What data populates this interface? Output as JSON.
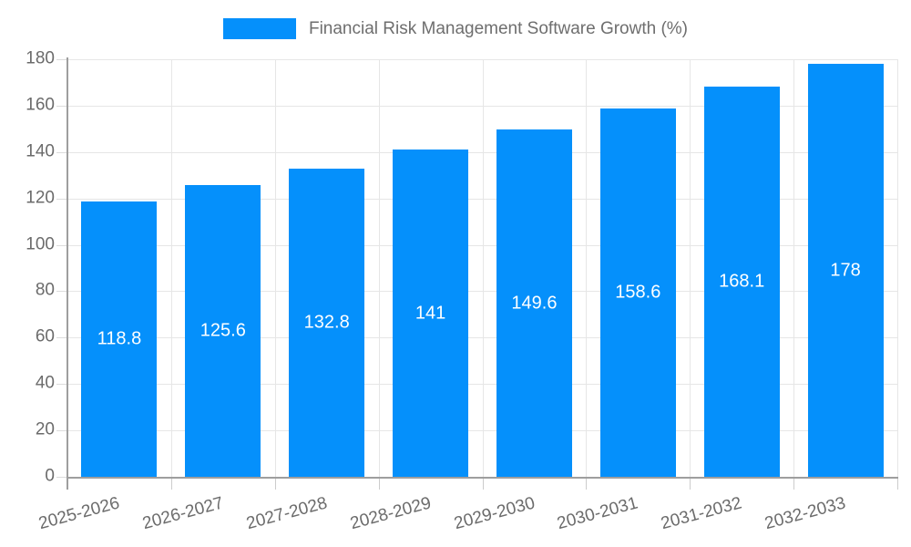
{
  "chart_data": {
    "type": "bar",
    "title": "Financial Risk Management Software Growth (%)",
    "categories": [
      "2025-2026",
      "2026-2027",
      "2027-2028",
      "2028-2029",
      "2029-2030",
      "2030-2031",
      "2031-2032",
      "2032-2033"
    ],
    "values": [
      118.8,
      125.6,
      132.8,
      141,
      149.6,
      158.6,
      168.1,
      178
    ],
    "xlabel": "",
    "ylabel": "",
    "ylim": [
      0,
      180
    ],
    "yticks": [
      0,
      20,
      40,
      60,
      80,
      100,
      120,
      140,
      160,
      180
    ],
    "grid": true,
    "legend_position": "top",
    "legend_swatch_icon": "blue-rect-swatch",
    "colors": {
      "bar": "#0590fb",
      "bar_value_label": "#ffffff",
      "axis_text": "#6b6b6b",
      "legend_text": "#6e6e6e",
      "gridline": "#e6e6e6",
      "axis_line": "#9e9e9e"
    }
  }
}
